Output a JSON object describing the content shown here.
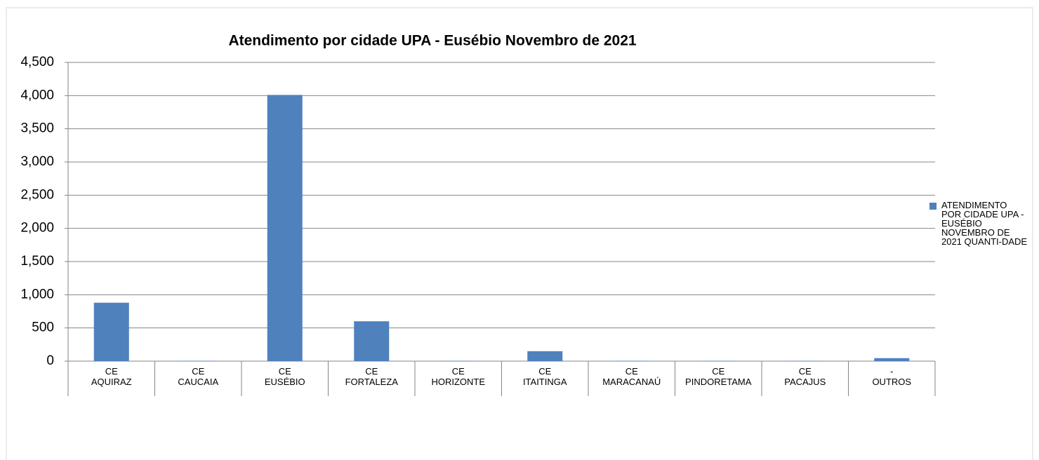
{
  "chart_data": {
    "type": "bar",
    "title": "Atendimento por cidade UPA - Eusébio Novembro de 2021",
    "categories": [
      "CE AQUIRAZ",
      "CE CAUCAIA",
      "CE EUSÉBIO",
      "CE FORTALEZA",
      "CE HORIZONTE",
      "CE ITAITINGA",
      "CE MARACANAÚ",
      "CE PINDORETAMA",
      "CE PACAJUS",
      "- OUTROS"
    ],
    "series": [
      {
        "name": "ATENDIMENTO POR CIDADE UPA - EUSÉBIO NOVEMBRO DE 2021 QUANTI-DADE",
        "color": "#4f81bd",
        "values": [
          880,
          5,
          4010,
          600,
          3,
          150,
          5,
          3,
          3,
          45
        ]
      }
    ],
    "ylim": [
      0,
      4500
    ],
    "yticks": [
      0,
      500,
      {
        "value": 1000,
        "label": "1,000"
      },
      {
        "value": 1500,
        "label": "1,500"
      },
      {
        "value": 2000,
        "label": "2,000"
      },
      {
        "value": 2500,
        "label": "2,500"
      },
      {
        "value": 3000,
        "label": "3,000"
      },
      {
        "value": 3500,
        "label": "3,500"
      },
      {
        "value": 4000,
        "label": "4,000"
      },
      {
        "value": 4500,
        "label": "4,500"
      }
    ],
    "grid": true,
    "legend": "right"
  }
}
